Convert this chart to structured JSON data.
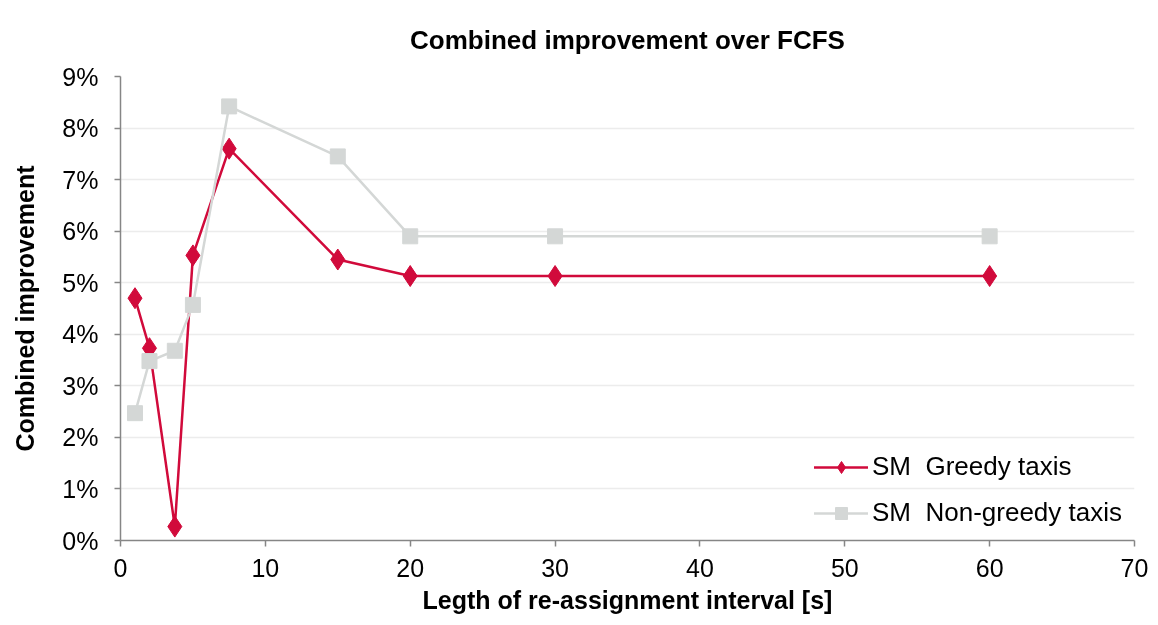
{
  "chart_data": {
    "type": "line",
    "title": "Combined improvement over FCFS",
    "xlabel": "Legth of re-assignment interval [s]",
    "ylabel": "Combined improvement",
    "x": [
      1,
      2,
      3.75,
      5,
      7.5,
      15,
      20,
      30,
      60
    ],
    "series": [
      {
        "name": "SM  Greedy taxis",
        "color": "#d10a3b",
        "marker": "diamond",
        "values": [
          4.7,
          3.73,
          0.27,
          5.53,
          7.6,
          5.45,
          5.13,
          5.13,
          5.13
        ]
      },
      {
        "name": "SM  Non-greedy taxis",
        "color": "#d4d7d6",
        "marker": "square",
        "values": [
          2.47,
          3.48,
          3.68,
          4.57,
          8.42,
          7.45,
          5.9,
          5.9,
          5.9
        ]
      }
    ],
    "xlim": [
      0,
      70
    ],
    "xticks": [
      0,
      10,
      20,
      30,
      40,
      50,
      60,
      70
    ],
    "ylim": [
      0,
      9
    ],
    "yticks": [
      {
        "value": 0,
        "label": "0%"
      },
      {
        "value": 1,
        "label": "1%"
      },
      {
        "value": 2,
        "label": "2%"
      },
      {
        "value": 3,
        "label": "3%"
      },
      {
        "value": 4,
        "label": "4%"
      },
      {
        "value": 5,
        "label": "5%"
      },
      {
        "value": 6,
        "label": "6%"
      },
      {
        "value": 7,
        "label": "7%"
      },
      {
        "value": 8,
        "label": "8%"
      },
      {
        "value": 9,
        "label": "9%"
      }
    ],
    "grid": "y",
    "legend": "bottom right",
    "line_style": "solid"
  }
}
